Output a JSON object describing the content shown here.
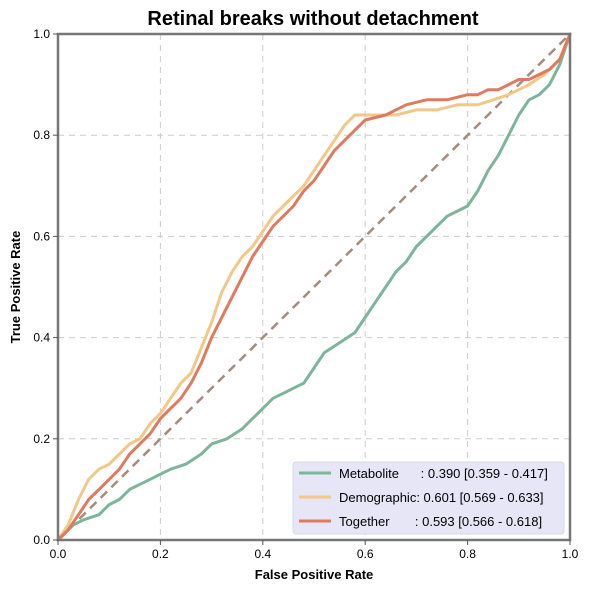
{
  "chart_data": {
    "type": "line",
    "title": "Retinal breaks without detachment",
    "xlabel": "False Positive Rate",
    "ylabel": "True Positive Rate",
    "xlim": [
      0,
      1
    ],
    "ylim": [
      0,
      1
    ],
    "xticks": [
      "0.0",
      "0.2",
      "0.4",
      "0.6",
      "0.8",
      "1.0"
    ],
    "yticks": [
      "0.0",
      "0.2",
      "0.4",
      "0.6",
      "0.8",
      "1.0"
    ],
    "grid": true,
    "legend_position": "lower-right",
    "legend_background": "#e6e6f7",
    "diagonal": {
      "x": [
        0,
        1
      ],
      "y": [
        0,
        1
      ],
      "color": "#a88a7c",
      "dashed": true
    },
    "series": [
      {
        "name": "Metabolite",
        "legend_label": "Metabolite      : 0.390 [0.359 - 0.417]",
        "color": "#7db59a",
        "x": [
          0,
          0.01,
          0.03,
          0.05,
          0.08,
          0.1,
          0.12,
          0.14,
          0.16,
          0.18,
          0.2,
          0.22,
          0.25,
          0.28,
          0.3,
          0.33,
          0.36,
          0.38,
          0.4,
          0.42,
          0.44,
          0.46,
          0.48,
          0.5,
          0.52,
          0.55,
          0.58,
          0.6,
          0.62,
          0.64,
          0.66,
          0.68,
          0.7,
          0.72,
          0.74,
          0.76,
          0.78,
          0.8,
          0.82,
          0.84,
          0.86,
          0.88,
          0.9,
          0.92,
          0.94,
          0.96,
          0.98,
          1.0
        ],
        "y": [
          0,
          0.01,
          0.03,
          0.04,
          0.05,
          0.07,
          0.08,
          0.1,
          0.11,
          0.12,
          0.13,
          0.14,
          0.15,
          0.17,
          0.19,
          0.2,
          0.22,
          0.24,
          0.26,
          0.28,
          0.29,
          0.3,
          0.31,
          0.34,
          0.37,
          0.39,
          0.41,
          0.44,
          0.47,
          0.5,
          0.53,
          0.55,
          0.58,
          0.6,
          0.62,
          0.64,
          0.65,
          0.66,
          0.69,
          0.73,
          0.76,
          0.8,
          0.84,
          0.87,
          0.88,
          0.9,
          0.94,
          1.0
        ]
      },
      {
        "name": "Demographic",
        "legend_label": "Demographic: 0.601 [0.569 - 0.633]",
        "color": "#f0c888",
        "x": [
          0,
          0.02,
          0.04,
          0.06,
          0.08,
          0.1,
          0.12,
          0.14,
          0.16,
          0.18,
          0.2,
          0.22,
          0.24,
          0.26,
          0.28,
          0.3,
          0.32,
          0.34,
          0.36,
          0.38,
          0.4,
          0.42,
          0.44,
          0.46,
          0.48,
          0.5,
          0.52,
          0.54,
          0.56,
          0.58,
          0.6,
          0.62,
          0.66,
          0.7,
          0.74,
          0.78,
          0.8,
          0.82,
          0.85,
          0.88,
          0.9,
          0.92,
          0.95,
          0.98,
          1.0
        ],
        "y": [
          0,
          0.03,
          0.08,
          0.12,
          0.14,
          0.15,
          0.17,
          0.19,
          0.2,
          0.23,
          0.25,
          0.28,
          0.31,
          0.33,
          0.38,
          0.43,
          0.49,
          0.53,
          0.56,
          0.58,
          0.61,
          0.64,
          0.66,
          0.68,
          0.7,
          0.73,
          0.76,
          0.79,
          0.82,
          0.84,
          0.84,
          0.84,
          0.84,
          0.85,
          0.85,
          0.86,
          0.86,
          0.86,
          0.87,
          0.88,
          0.89,
          0.9,
          0.92,
          0.95,
          1.0
        ]
      },
      {
        "name": "Together",
        "legend_label": "Together       : 0.593 [0.566 - 0.618]",
        "color": "#e07a5f",
        "x": [
          0,
          0.02,
          0.04,
          0.06,
          0.08,
          0.1,
          0.12,
          0.14,
          0.16,
          0.18,
          0.2,
          0.22,
          0.24,
          0.26,
          0.28,
          0.3,
          0.32,
          0.34,
          0.36,
          0.38,
          0.4,
          0.42,
          0.44,
          0.46,
          0.48,
          0.5,
          0.52,
          0.54,
          0.56,
          0.58,
          0.6,
          0.64,
          0.68,
          0.72,
          0.76,
          0.8,
          0.82,
          0.84,
          0.86,
          0.88,
          0.9,
          0.92,
          0.94,
          0.96,
          0.98,
          1.0
        ],
        "y": [
          0,
          0.02,
          0.05,
          0.08,
          0.1,
          0.12,
          0.14,
          0.17,
          0.19,
          0.21,
          0.24,
          0.26,
          0.28,
          0.31,
          0.35,
          0.4,
          0.44,
          0.48,
          0.52,
          0.56,
          0.59,
          0.62,
          0.64,
          0.66,
          0.69,
          0.71,
          0.74,
          0.77,
          0.79,
          0.81,
          0.83,
          0.84,
          0.86,
          0.87,
          0.87,
          0.88,
          0.88,
          0.89,
          0.89,
          0.9,
          0.91,
          0.91,
          0.92,
          0.93,
          0.95,
          1.0
        ]
      }
    ]
  }
}
